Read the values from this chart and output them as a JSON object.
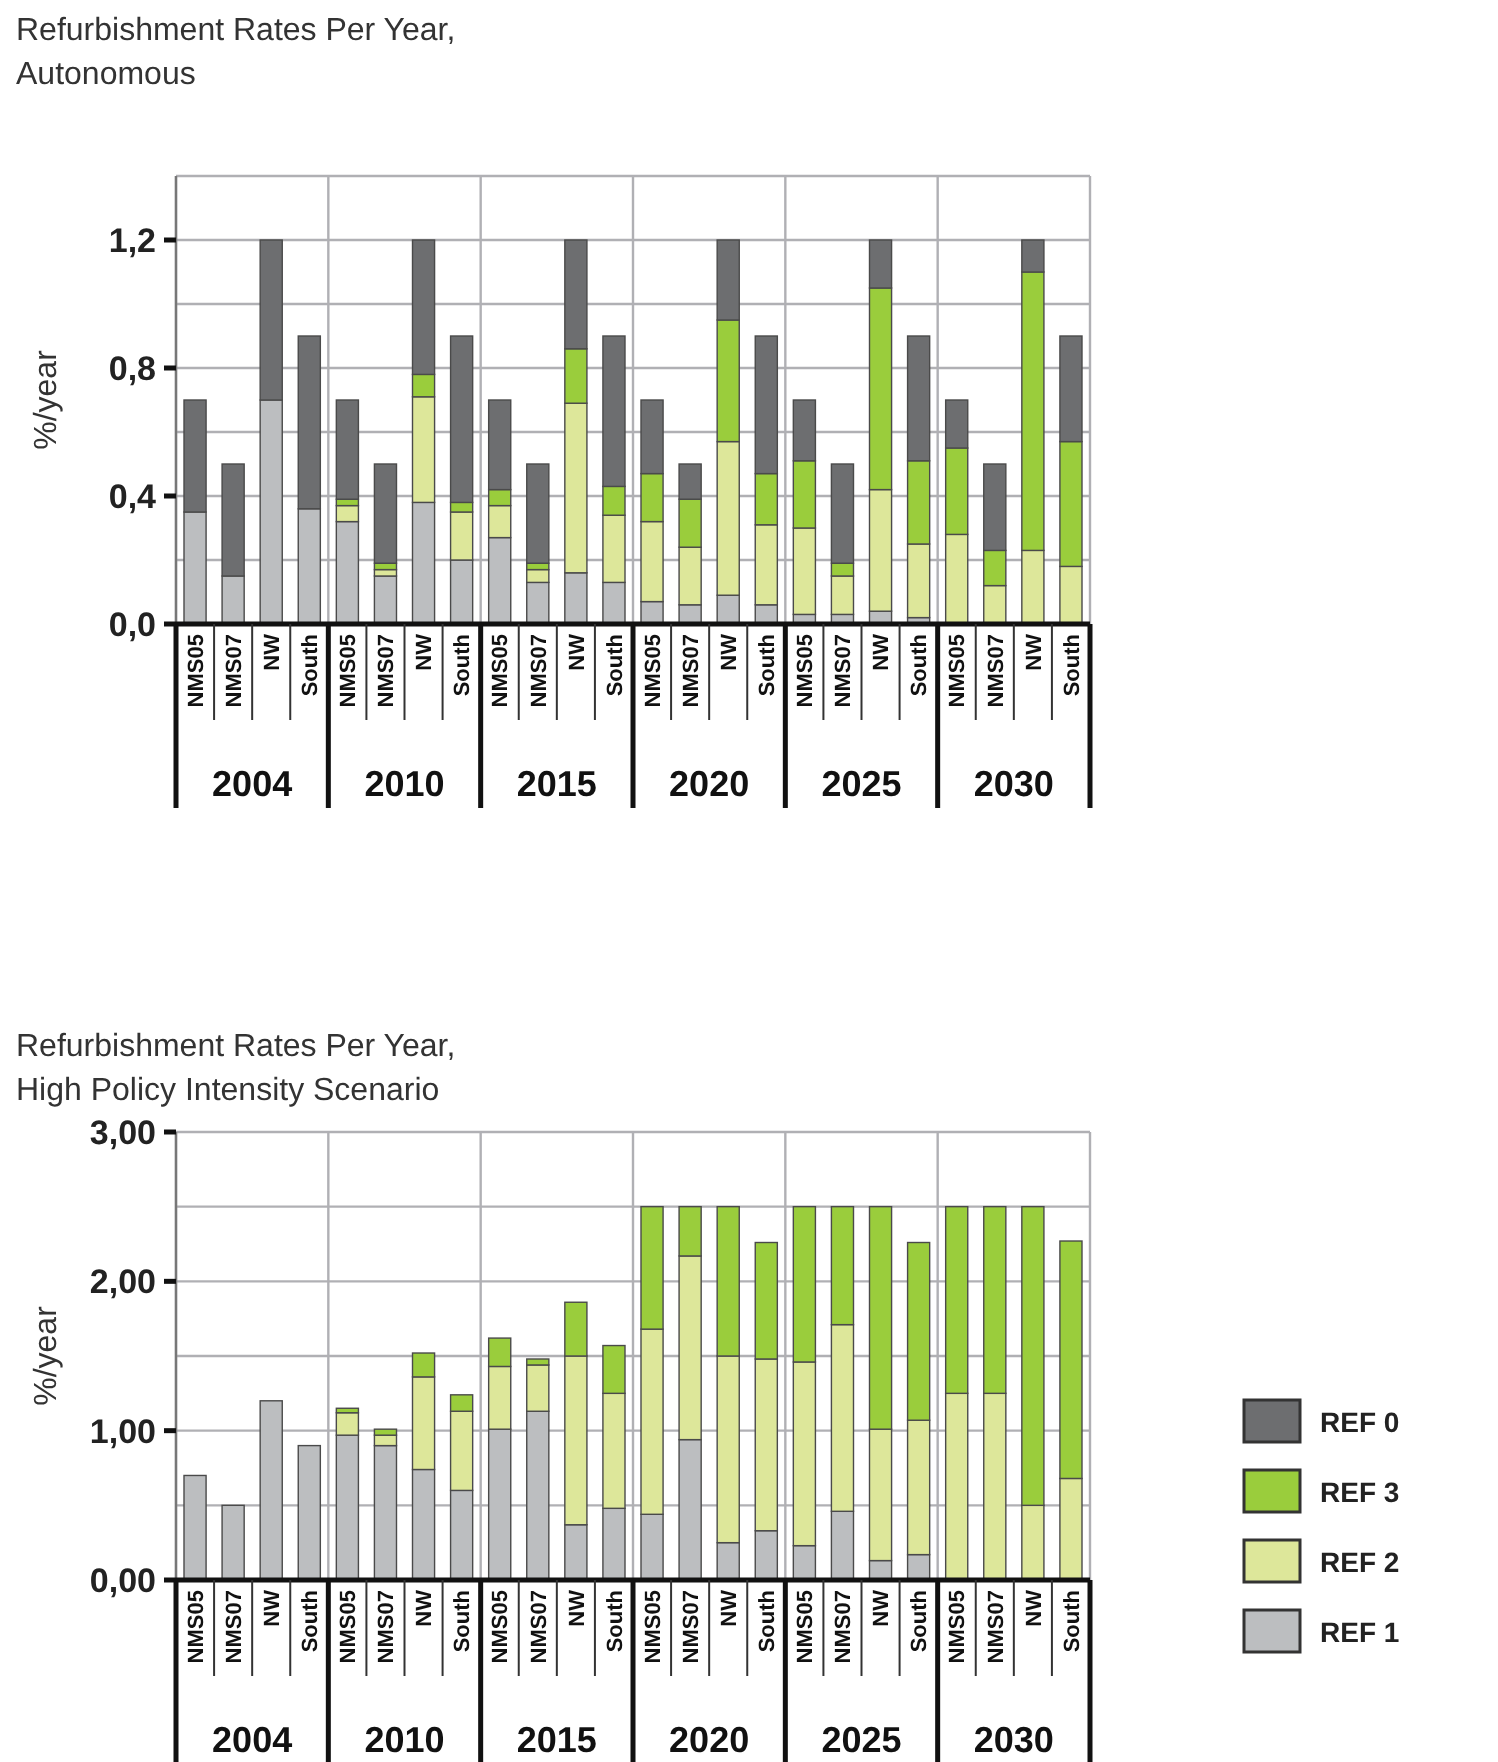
{
  "chart_data": [
    {
      "type": "bar",
      "title": "Refurbishment Rates Per Year,",
      "subtitle": "Autonomous",
      "ylabel": "%/year",
      "stacked": true,
      "grid": true,
      "legend": false,
      "categories": [
        "NMS05",
        "NMS07",
        "NW",
        "South",
        "NMS05",
        "NMS07",
        "NW",
        "South",
        "NMS05",
        "NMS07",
        "NW",
        "South",
        "NMS05",
        "NMS07",
        "NW",
        "South",
        "NMS05",
        "NMS07",
        "NW",
        "South",
        "NMS05",
        "NMS07",
        "NW",
        "South"
      ],
      "annotations": [
        "2004",
        "2010",
        "2015",
        "2020",
        "2025",
        "2030"
      ],
      "ylim": [
        0,
        1.4
      ],
      "yticks": [
        {
          "value": 0,
          "label": "0,0"
        },
        {
          "value": 0.2,
          "label": null
        },
        {
          "value": 0.4,
          "label": "0,4"
        },
        {
          "value": 0.6,
          "label": null
        },
        {
          "value": 0.8,
          "label": "0,8"
        },
        {
          "value": 1,
          "label": null
        },
        {
          "value": 1.2,
          "label": "1,2"
        },
        {
          "value": 1.4,
          "label": null
        }
      ],
      "series": [
        {
          "color": "#bcbec0",
          "values": [
            0.35,
            0.15,
            0.7,
            0.36,
            0.32,
            0.15,
            0.38,
            0.2,
            0.27,
            0.13,
            0.16,
            0.13,
            0.07,
            0.06,
            0.09,
            0.06,
            0.03,
            0.03,
            0.04,
            0.02,
            0,
            0,
            0,
            0
          ]
        },
        {
          "color": "#dde79a",
          "values": [
            0,
            0,
            0,
            0,
            0.05,
            0.02,
            0.33,
            0.15,
            0.1,
            0.04,
            0.53,
            0.21,
            0.25,
            0.18,
            0.48,
            0.25,
            0.27,
            0.12,
            0.38,
            0.23,
            0.28,
            0.12,
            0.23,
            0.18
          ]
        },
        {
          "color": "#9acd3c",
          "values": [
            0,
            0,
            0,
            0,
            0.02,
            0.02,
            0.07,
            0.03,
            0.05,
            0.02,
            0.17,
            0.09,
            0.15,
            0.15,
            0.38,
            0.16,
            0.21,
            0.04,
            0.63,
            0.26,
            0.27,
            0.11,
            0.87,
            0.39
          ]
        },
        {
          "color": "#6d6e70",
          "values": [
            0.35,
            0.35,
            0.5,
            0.54,
            0.31,
            0.31,
            0.42,
            0.52,
            0.28,
            0.31,
            0.34,
            0.47,
            0.23,
            0.11,
            0.25,
            0.43,
            0.19,
            0.31,
            0.15,
            0.39,
            0.15,
            0.27,
            0.1,
            0.33
          ]
        }
      ]
    },
    {
      "type": "bar",
      "title": "Refurbishment Rates Per Year,",
      "subtitle": "High Policy Intensity Scenario",
      "ylabel": "%/year",
      "stacked": true,
      "grid": true,
      "legend": "bottom right",
      "categories": [
        "NMS05",
        "NMS07",
        "NW",
        "South",
        "NMS05",
        "NMS07",
        "NW",
        "South",
        "NMS05",
        "NMS07",
        "NW",
        "South",
        "NMS05",
        "NMS07",
        "NW",
        "South",
        "NMS05",
        "NMS07",
        "NW",
        "South",
        "NMS05",
        "NMS07",
        "NW",
        "South"
      ],
      "annotations": [
        "2004",
        "2010",
        "2015",
        "2020",
        "2025",
        "2030"
      ],
      "ylim": [
        0,
        3
      ],
      "yticks": [
        {
          "value": 0,
          "label": "0,00"
        },
        {
          "value": 0.5,
          "label": null
        },
        {
          "value": 1,
          "label": "1,00"
        },
        {
          "value": 1.5,
          "label": null
        },
        {
          "value": 2,
          "label": "2,00"
        },
        {
          "value": 2.5,
          "label": null
        },
        {
          "value": 3,
          "label": "3,00"
        }
      ],
      "series": [
        {
          "name": "REF 1",
          "color": "#bcbec0",
          "values": [
            0.7,
            0.5,
            1.2,
            0.9,
            0.97,
            0.9,
            0.74,
            0.6,
            1.01,
            1.13,
            0.37,
            0.48,
            0.44,
            0.94,
            0.25,
            0.33,
            0.23,
            0.46,
            0.13,
            0.17,
            0,
            0,
            0,
            0
          ]
        },
        {
          "name": "REF 2",
          "color": "#dde79a",
          "values": [
            0,
            0,
            0,
            0,
            0.15,
            0.07,
            0.62,
            0.53,
            0.42,
            0.31,
            1.13,
            0.77,
            1.24,
            1.23,
            1.25,
            1.15,
            1.23,
            1.25,
            0.88,
            0.9,
            1.25,
            1.25,
            0.5,
            0.68
          ]
        },
        {
          "name": "REF 3",
          "color": "#9acd3c",
          "values": [
            0,
            0,
            0,
            0,
            0.03,
            0.04,
            0.16,
            0.11,
            0.19,
            0.04,
            0.36,
            0.32,
            0.82,
            0.33,
            1,
            0.78,
            1.04,
            0.79,
            1.49,
            1.19,
            1.25,
            1.25,
            2,
            1.59
          ]
        },
        {
          "name": "REF 0",
          "color": "#6d6e70",
          "values": [
            0,
            0,
            0,
            0,
            0,
            0,
            0,
            0,
            0,
            0,
            0,
            0,
            0,
            0,
            0,
            0,
            0,
            0,
            0,
            0,
            0,
            0,
            0,
            0
          ]
        }
      ]
    }
  ]
}
